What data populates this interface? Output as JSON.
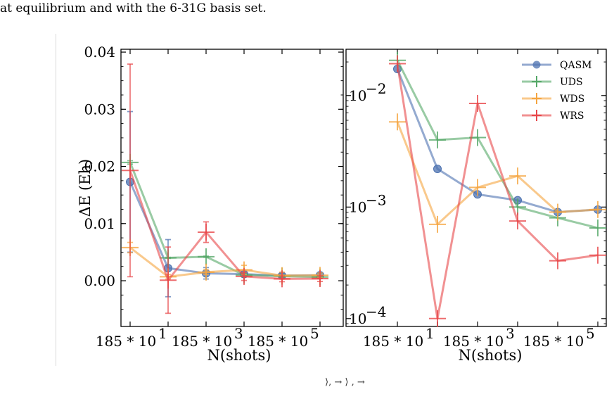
{
  "caption": {
    "top": "at equilibrium and with the 6-31G basis set.",
    "bottom_fragment": "⟩, → ⟩ , →"
  },
  "colors": {
    "QASM": "#4c72b0",
    "UDS": "#55a868",
    "WDS": "#f5a540",
    "WRS": "#e8474a"
  },
  "chart_data": [
    {
      "type": "line",
      "xlabel": "N(shots)",
      "ylabel": "ΔE (Eh)",
      "x": [
        1850,
        5850,
        18500,
        58500,
        185000,
        585000
      ],
      "xticks": [
        {
          "value": 1850,
          "label": "185 * 10"
        },
        {
          "value": 185000,
          "label": "185 * 10"
        }
      ],
      "xtick_exponents": [
        "1",
        "3",
        "5"
      ],
      "xtick_values": [
        1850,
        185000,
        18500000
      ],
      "yticks": [
        0,
        0.01,
        0.02,
        0.03,
        0.04
      ],
      "ytick_labels": [
        "0.00",
        "0.01",
        "0.02",
        "0.03",
        "0.04"
      ],
      "ylim": [
        -0.008,
        0.0405
      ],
      "xscale": "log",
      "series": [
        {
          "name": "QASM",
          "values": [
            0.0173,
            0.0022,
            0.0013,
            0.00115,
            0.0009,
            0.00095
          ],
          "err": [
            0.0123,
            0.005,
            0.001,
            0.0005,
            0.0004,
            0.0004
          ]
        },
        {
          "name": "UDS",
          "values": [
            0.0207,
            0.004,
            0.0042,
            0.001,
            0.0008,
            0.00065
          ],
          "err": [
            0.0003,
            0.0001,
            0.0001,
            0.0003,
            0.0002,
            0.0002
          ]
        },
        {
          "name": "WDS",
          "values": [
            0.0058,
            0.0007,
            0.0015,
            0.0019,
            0.0009,
            0.00095
          ],
          "err": [
            0.0009,
            0.0004,
            0.0004,
            0.0008,
            0.0006,
            0.0004
          ]
        },
        {
          "name": "WRS",
          "values": [
            0.0193,
            0.0001,
            0.0085,
            0.00075,
            0.00033,
            0.00037
          ],
          "err": [
            0.0186,
            0.0058,
            0.0018,
            0.0007,
            0.0005,
            0.0005
          ]
        }
      ]
    },
    {
      "type": "line",
      "xlabel": "N(shots)",
      "ylabel": "",
      "yscale": "log",
      "xscale": "log",
      "ylim": [
        8.5e-05,
        0.026
      ],
      "yticks": [
        0.0001,
        0.001,
        0.01
      ],
      "ytick_mantissa": "10",
      "ytick_exponents": [
        "−4",
        "−3",
        "−2"
      ],
      "legend": "top-right",
      "series": [
        {
          "name": "QASM",
          "values": [
            0.0173,
            0.0022,
            0.0013,
            0.00115,
            0.0009,
            0.00095
          ]
        },
        {
          "name": "UDS",
          "values": [
            0.0207,
            0.004,
            0.0042,
            0.001,
            0.0008,
            0.00065
          ]
        },
        {
          "name": "WDS",
          "values": [
            0.0058,
            0.0007,
            0.0015,
            0.0019,
            0.0009,
            0.00095
          ]
        },
        {
          "name": "WRS",
          "values": [
            0.0193,
            0.0001,
            0.0085,
            0.00075,
            0.00033,
            0.00037
          ]
        }
      ]
    }
  ]
}
